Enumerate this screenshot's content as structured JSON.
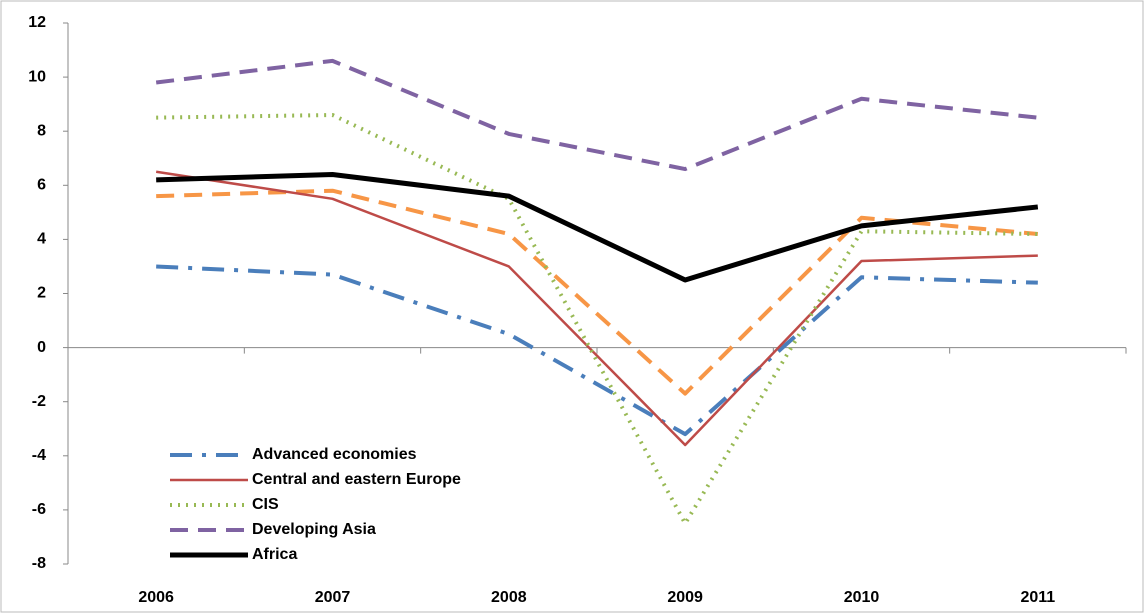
{
  "chart_data": {
    "type": "line",
    "categories": [
      "2006",
      "2007",
      "2008",
      "2009",
      "2010",
      "2011"
    ],
    "ylim": [
      -8,
      12
    ],
    "yticks": [
      -8,
      -6,
      -4,
      -2,
      0,
      2,
      4,
      6,
      8,
      10,
      12
    ],
    "legend": "lower left",
    "series": [
      {
        "name": "Advanced economies",
        "color": "#4a7ebb",
        "dash": "dashdot",
        "width": 4,
        "values": [
          3.0,
          2.7,
          0.5,
          -3.2,
          2.6,
          2.4
        ]
      },
      {
        "name": "Central and eastern Europe",
        "color": "#be4b48",
        "dash": "solid",
        "width": 2.5,
        "values": [
          6.5,
          5.5,
          3.0,
          -3.6,
          3.2,
          3.4
        ]
      },
      {
        "name": "CIS",
        "color": "#98b954",
        "dash": "dotted",
        "width": 4,
        "values": [
          8.5,
          8.6,
          5.5,
          -6.5,
          4.3,
          4.2
        ]
      },
      {
        "name": "Developing Asia",
        "color": "#7f63a2",
        "dash": "dashed",
        "width": 4,
        "values": [
          9.8,
          10.6,
          7.9,
          6.6,
          9.2,
          8.5
        ]
      },
      {
        "name": "Africa",
        "color": "#000000",
        "dash": "solid",
        "width": 5,
        "values": [
          6.2,
          6.4,
          5.6,
          2.5,
          4.5,
          5.2
        ]
      },
      {
        "color": "#f79646",
        "dash": "dashed",
        "width": 4,
        "values": [
          5.6,
          5.8,
          4.2,
          -1.7,
          4.8,
          4.2
        ]
      }
    ]
  }
}
